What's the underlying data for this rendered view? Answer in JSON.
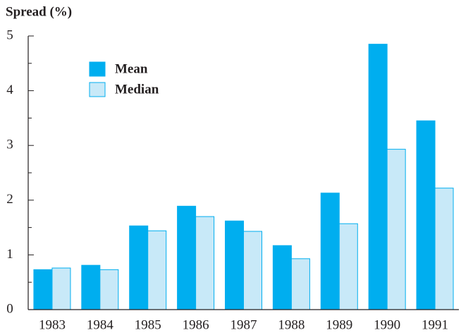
{
  "chart_data": {
    "type": "bar",
    "y_label": "Spread (%)",
    "categories": [
      "1983",
      "1984",
      "1985",
      "1986",
      "1987",
      "1988",
      "1989",
      "1990",
      "1991"
    ],
    "series": [
      {
        "name": "Mean",
        "color": "#00aeef",
        "values": [
          0.73,
          0.81,
          1.53,
          1.89,
          1.62,
          1.17,
          2.13,
          4.85,
          3.45
        ]
      },
      {
        "name": "Median",
        "color": "#c8e9f8",
        "values": [
          0.76,
          0.73,
          1.44,
          1.7,
          1.43,
          0.93,
          1.57,
          2.93,
          2.22
        ]
      }
    ],
    "ylim": [
      0,
      5
    ],
    "yticks": [
      0,
      1,
      2,
      3,
      4,
      5
    ],
    "yminor": [
      0.5,
      1.5,
      2.5,
      3.5,
      4.5
    ],
    "edge_color": "#00aeef",
    "legend": "upper-left",
    "grid": false
  }
}
